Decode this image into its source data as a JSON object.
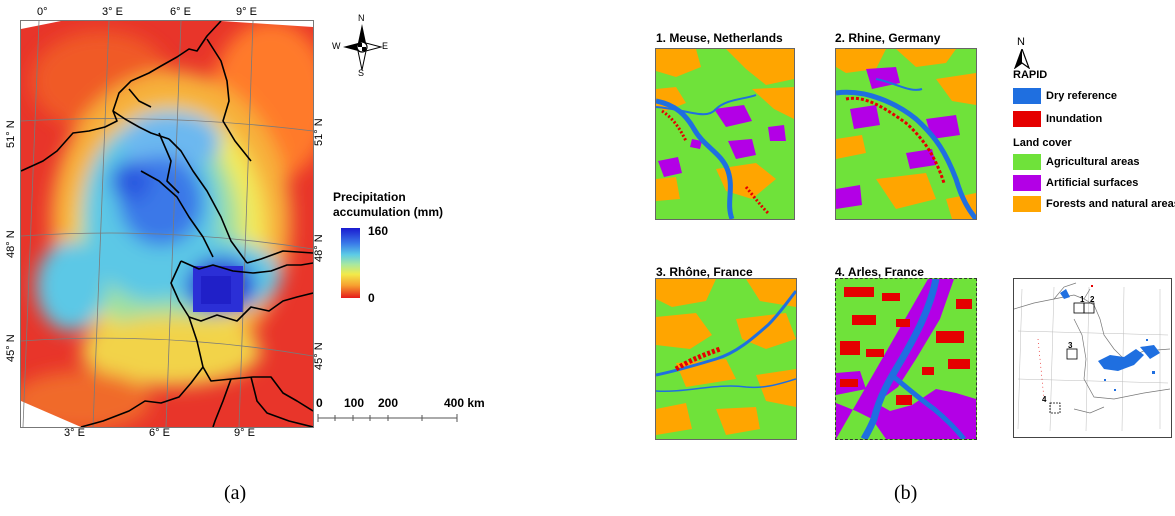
{
  "panel_a": {
    "lon_top": [
      "0°",
      "3° E",
      "6° E",
      "9° E"
    ],
    "lon_bottom": [
      "3° E",
      "6° E",
      "9° E"
    ],
    "lat_left": [
      "51° N",
      "48° N",
      "45° N"
    ],
    "lat_right": [
      "51° N",
      "48° N",
      "45° N"
    ],
    "compass": {
      "n": "N",
      "s": "S",
      "e": "E",
      "w": "W"
    },
    "legend_title_line1": "Precipitation",
    "legend_title_line2": "accumulation (mm)",
    "legend_max": "160",
    "legend_min": "0",
    "scalebar": [
      "0",
      "100",
      "200",
      "400 km"
    ],
    "caption": "(a)"
  },
  "panel_b": {
    "titles": [
      "1. Meuse, Netherlands",
      "2. Rhine, Germany",
      "3. Rhône, France",
      "4. Arles, France"
    ],
    "north": "N",
    "rapid_title": "RAPID",
    "rapid_items": [
      {
        "label": "Dry reference",
        "color": "#1f6fe0"
      },
      {
        "label": "Inundation",
        "color": "#e50000"
      }
    ],
    "landcover_title": "Land cover",
    "landcover_items": [
      {
        "label": "Agricultural areas",
        "color": "#6fe23a"
      },
      {
        "label": "Artificial surfaces",
        "color": "#b300e6"
      },
      {
        "label": "Forests and natural areas",
        "color": "#ffa500"
      }
    ],
    "inset_markers": [
      "1",
      "2",
      "3",
      "4"
    ],
    "caption": "(b)"
  }
}
